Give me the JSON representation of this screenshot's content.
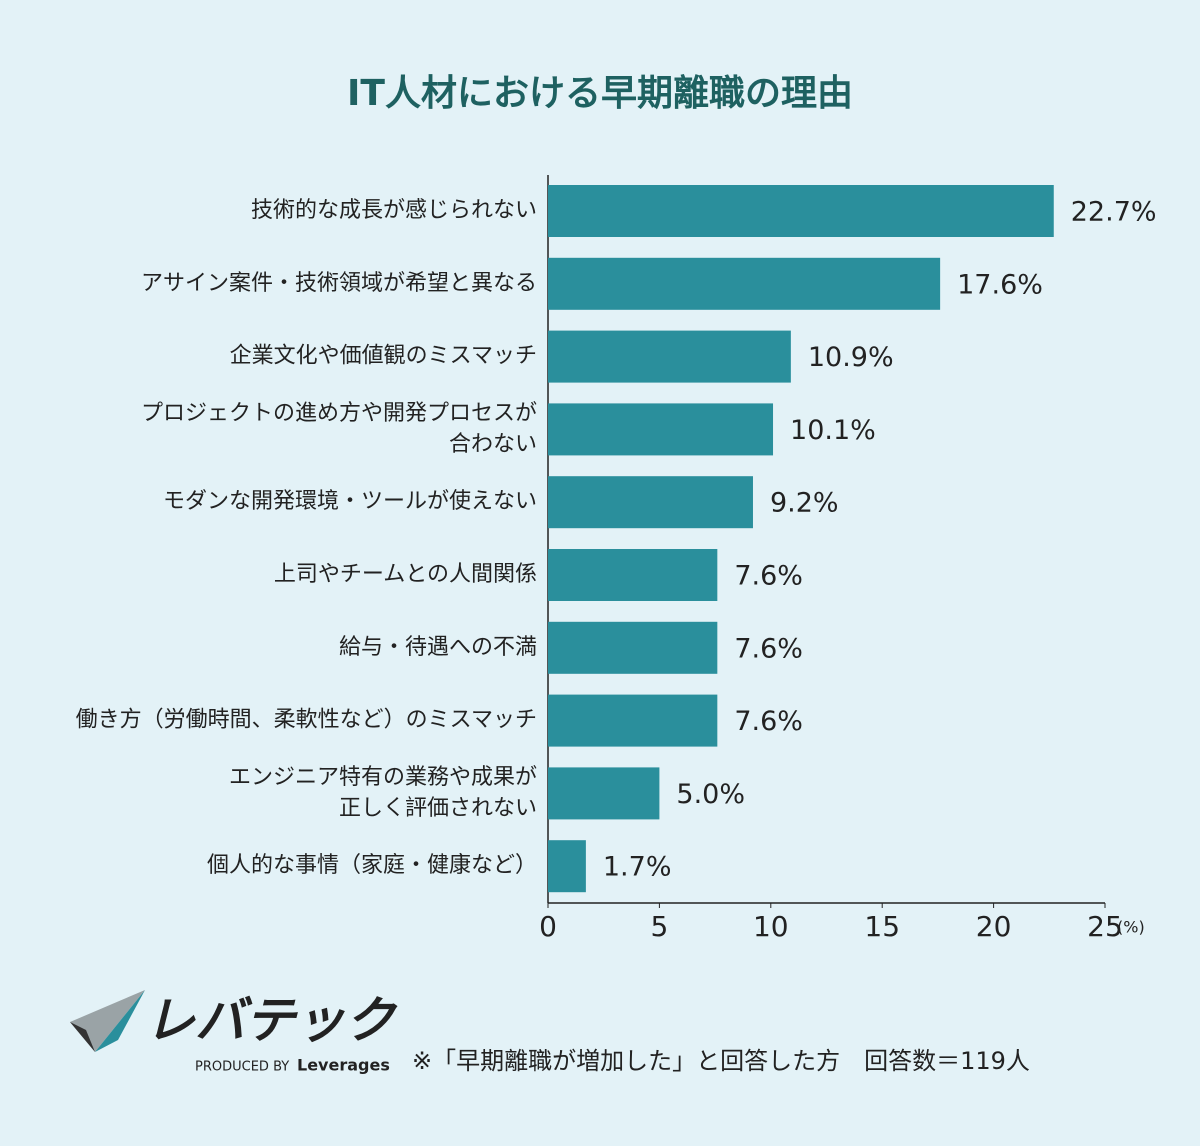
{
  "chart_data": {
    "type": "hbar",
    "title": "IT人材における早期離職の理由",
    "categories": [
      "技術的な成長が感じられない",
      "アサイン案件・技術領域が希望と異なる",
      "企業文化や価値観のミスマッチ",
      "プロジェクトの進め方や開発プロセスが\n合わない",
      "モダンな開発環境・ツールが使えない",
      "上司やチームとの人間関係",
      "給与・待遇への不満",
      "働き方（労働時間、柔軟性など）のミスマッチ",
      "エンジニア特有の業務や成果が\n正しく評価されない",
      "個人的な事情（家庭・健康など）"
    ],
    "values": [
      22.7,
      17.6,
      10.9,
      10.1,
      9.2,
      7.6,
      7.6,
      7.6,
      5.0,
      1.7
    ],
    "value_labels": [
      "22.7%",
      "17.6%",
      "10.9%",
      "10.1%",
      "9.2%",
      "7.6%",
      "7.6%",
      "7.6%",
      "5.0%",
      "1.7%"
    ],
    "color": "#2a8f9c",
    "xlim": [
      0,
      25
    ],
    "xticks": [
      0,
      5,
      10,
      15,
      20,
      25
    ],
    "xlabel": "(%)",
    "note": "※「早期離職が増加した」と回答した方　回答数＝119人"
  },
  "logo": {
    "name": "レバテック",
    "produced_by": "PRODUCED BY",
    "company": "Leverages"
  }
}
